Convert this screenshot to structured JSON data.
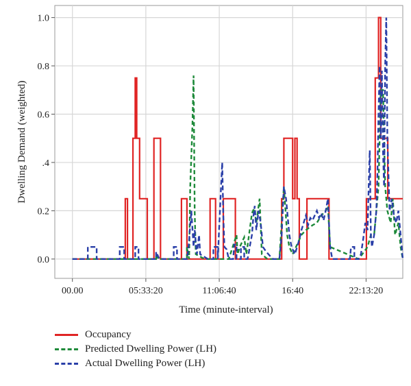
{
  "chart_data": {
    "type": "line",
    "xlabel": "Time (minute-interval)",
    "ylabel": "Dwelling Demand (weighted)",
    "x_ticks": [
      "00.00",
      "05:33:20",
      "11:06:40",
      "16:40",
      "22:13:20"
    ],
    "y_ticks": [
      "0.0",
      "0.2",
      ".4",
      "0.6",
      "0.8",
      "1.0"
    ],
    "y_tick_values": [
      0,
      0.2,
      0.4,
      0.6,
      0.8,
      1.0
    ],
    "x_tick_values": [
      0,
      333.33,
      666.67,
      1000,
      1333.33
    ],
    "x_unit": "minutes",
    "xlim": [
      -80,
      1500
    ],
    "ylim": [
      -0.08,
      1.05
    ],
    "grid": true,
    "legend_position": "below",
    "series": [
      {
        "name": "Occupancy",
        "color": "#e02424",
        "dash": "solid",
        "points": [
          [
            0,
            0
          ],
          [
            240,
            0
          ],
          [
            240,
            0.25
          ],
          [
            250,
            0.25
          ],
          [
            250,
            0
          ],
          [
            275,
            0
          ],
          [
            275,
            0.5
          ],
          [
            285,
            0.5
          ],
          [
            285,
            0.75
          ],
          [
            292,
            0.75
          ],
          [
            292,
            0.5
          ],
          [
            305,
            0.5
          ],
          [
            305,
            0.25
          ],
          [
            340,
            0.25
          ],
          [
            340,
            0
          ],
          [
            370,
            0
          ],
          [
            370,
            0.5
          ],
          [
            400,
            0.5
          ],
          [
            400,
            0
          ],
          [
            495,
            0
          ],
          [
            495,
            0.25
          ],
          [
            520,
            0.25
          ],
          [
            520,
            0
          ],
          [
            625,
            0
          ],
          [
            625,
            0.25
          ],
          [
            650,
            0.25
          ],
          [
            650,
            0
          ],
          [
            685,
            0
          ],
          [
            685,
            0.25
          ],
          [
            740,
            0.25
          ],
          [
            740,
            0
          ],
          [
            790,
            0
          ],
          [
            790,
            0
          ],
          [
            830,
            0
          ],
          [
            830,
            0
          ],
          [
            950,
            0
          ],
          [
            950,
            0.25
          ],
          [
            960,
            0.25
          ],
          [
            960,
            0.5
          ],
          [
            1000,
            0.5
          ],
          [
            1000,
            0.25
          ],
          [
            1010,
            0.25
          ],
          [
            1010,
            0.5
          ],
          [
            1020,
            0.5
          ],
          [
            1020,
            0.25
          ],
          [
            1030,
            0.25
          ],
          [
            1030,
            0
          ],
          [
            1065,
            0
          ],
          [
            1065,
            0.25
          ],
          [
            1165,
            0.25
          ],
          [
            1165,
            0
          ],
          [
            1335,
            0
          ],
          [
            1335,
            0.25
          ],
          [
            1375,
            0.25
          ],
          [
            1375,
            0.75
          ],
          [
            1390,
            0.75
          ],
          [
            1390,
            1.0
          ],
          [
            1400,
            1.0
          ],
          [
            1400,
            0.5
          ],
          [
            1432,
            0.5
          ],
          [
            1432,
            0.25
          ],
          [
            1500,
            0.25
          ]
        ]
      },
      {
        "name": "Predicted Dwelling Power (LH)",
        "color": "#1e8a3a",
        "dash": "6,4",
        "points": [
          [
            0,
            0
          ],
          [
            380,
            0
          ],
          [
            380,
            0.02
          ],
          [
            390,
            0
          ],
          [
            520,
            0
          ],
          [
            520,
            0.05
          ],
          [
            530,
            0
          ],
          [
            535,
            0.3
          ],
          [
            545,
            0.55
          ],
          [
            550,
            0.76
          ],
          [
            555,
            0.2
          ],
          [
            560,
            0.02
          ],
          [
            600,
            0
          ],
          [
            640,
            0
          ],
          [
            660,
            0
          ],
          [
            710,
            0
          ],
          [
            745,
            0.1
          ],
          [
            750,
            0.02
          ],
          [
            760,
            0.05
          ],
          [
            780,
            0.09
          ],
          [
            790,
            0.02
          ],
          [
            805,
            0.12
          ],
          [
            815,
            0.19
          ],
          [
            825,
            0.21
          ],
          [
            835,
            0.15
          ],
          [
            850,
            0.25
          ],
          [
            860,
            0.02
          ],
          [
            885,
            0
          ],
          [
            940,
            0
          ],
          [
            960,
            0.3
          ],
          [
            975,
            0.1
          ],
          [
            985,
            0.05
          ],
          [
            1000,
            0.02
          ],
          [
            1020,
            0.06
          ],
          [
            1040,
            0.1
          ],
          [
            1060,
            0.12
          ],
          [
            1075,
            0.13
          ],
          [
            1090,
            0.14
          ],
          [
            1110,
            0.15
          ],
          [
            1130,
            0.18
          ],
          [
            1150,
            0.2
          ],
          [
            1160,
            0.22
          ],
          [
            1170,
            0.05
          ],
          [
            1300,
            0
          ],
          [
            1340,
            0.05
          ],
          [
            1355,
            0.1
          ],
          [
            1370,
            0.1
          ],
          [
            1390,
            0.3
          ],
          [
            1400,
            0.7
          ],
          [
            1410,
            0.7
          ],
          [
            1420,
            0.3
          ],
          [
            1430,
            0.2
          ],
          [
            1445,
            0.15
          ],
          [
            1455,
            0.25
          ],
          [
            1465,
            0.1
          ],
          [
            1480,
            0.15
          ],
          [
            1490,
            0.05
          ],
          [
            1500,
            0
          ]
        ]
      },
      {
        "name": "Actual Dwelling Power (LH)",
        "color": "#2a3fa8",
        "dash": "7,4",
        "points": [
          [
            0,
            0
          ],
          [
            70,
            0
          ],
          [
            70,
            0.05
          ],
          [
            110,
            0.05
          ],
          [
            110,
            0
          ],
          [
            215,
            0
          ],
          [
            215,
            0.05
          ],
          [
            235,
            0.05
          ],
          [
            235,
            0
          ],
          [
            285,
            0
          ],
          [
            285,
            0.05
          ],
          [
            300,
            0.05
          ],
          [
            300,
            0
          ],
          [
            380,
            0
          ],
          [
            380,
            0.03
          ],
          [
            395,
            0
          ],
          [
            460,
            0
          ],
          [
            460,
            0.05
          ],
          [
            475,
            0.05
          ],
          [
            475,
            0
          ],
          [
            520,
            0
          ],
          [
            525,
            0.03
          ],
          [
            530,
            0.08
          ],
          [
            540,
            0.2
          ],
          [
            550,
            0.05
          ],
          [
            555,
            0.12
          ],
          [
            565,
            0.02
          ],
          [
            575,
            0.1
          ],
          [
            580,
            0.02
          ],
          [
            615,
            0
          ],
          [
            640,
            0
          ],
          [
            640,
            0.05
          ],
          [
            660,
            0.05
          ],
          [
            660,
            0
          ],
          [
            665,
            0.1
          ],
          [
            675,
            0.3
          ],
          [
            680,
            0.4
          ],
          [
            685,
            0.18
          ],
          [
            690,
            0.05
          ],
          [
            700,
            0.04
          ],
          [
            710,
            0
          ],
          [
            730,
            0
          ],
          [
            735,
            0.06
          ],
          [
            745,
            0.06
          ],
          [
            745,
            0
          ],
          [
            765,
            0
          ],
          [
            765,
            0.05
          ],
          [
            780,
            0.05
          ],
          [
            780,
            0
          ],
          [
            795,
            0
          ],
          [
            800,
            0.02
          ],
          [
            805,
            0.05
          ],
          [
            815,
            0.1
          ],
          [
            822,
            0.18
          ],
          [
            828,
            0.22
          ],
          [
            835,
            0.12
          ],
          [
            845,
            0.2
          ],
          [
            855,
            0.15
          ],
          [
            865,
            0.05
          ],
          [
            880,
            0.03
          ],
          [
            890,
            0.02
          ],
          [
            910,
            0
          ],
          [
            920,
            0
          ],
          [
            940,
            0
          ],
          [
            950,
            0.1
          ],
          [
            960,
            0.3
          ],
          [
            970,
            0.25
          ],
          [
            985,
            0.1
          ],
          [
            995,
            0.05
          ],
          [
            1010,
            0.02
          ],
          [
            1020,
            0.05
          ],
          [
            1030,
            0.08
          ],
          [
            1040,
            0.12
          ],
          [
            1050,
            0.15
          ],
          [
            1060,
            0.18
          ],
          [
            1070,
            0.14
          ],
          [
            1080,
            0.17
          ],
          [
            1090,
            0.16
          ],
          [
            1100,
            0.18
          ],
          [
            1110,
            0.2
          ],
          [
            1120,
            0.17
          ],
          [
            1130,
            0.19
          ],
          [
            1140,
            0.16
          ],
          [
            1150,
            0.2
          ],
          [
            1160,
            0.25
          ],
          [
            1170,
            0.05
          ],
          [
            1180,
            0
          ],
          [
            1260,
            0
          ],
          [
            1265,
            0.05
          ],
          [
            1280,
            0.05
          ],
          [
            1280,
            0
          ],
          [
            1300,
            0
          ],
          [
            1310,
            0.02
          ],
          [
            1320,
            0.08
          ],
          [
            1330,
            0.15
          ],
          [
            1340,
            0.12
          ],
          [
            1345,
            0.3
          ],
          [
            1350,
            0.45
          ],
          [
            1355,
            0.1
          ],
          [
            1360,
            0.05
          ],
          [
            1370,
            0.1
          ],
          [
            1380,
            0.2
          ],
          [
            1385,
            0.35
          ],
          [
            1390,
            0.6
          ],
          [
            1395,
            0.8
          ],
          [
            1400,
            0.5
          ],
          [
            1405,
            0.78
          ],
          [
            1410,
            0.45
          ],
          [
            1415,
            0.3
          ],
          [
            1420,
            0.8
          ],
          [
            1425,
            1.0
          ],
          [
            1430,
            0.5
          ],
          [
            1435,
            0.35
          ],
          [
            1440,
            0.2
          ],
          [
            1450,
            0.25
          ],
          [
            1460,
            0.18
          ],
          [
            1470,
            0.15
          ],
          [
            1480,
            0.2
          ],
          [
            1490,
            0.1
          ],
          [
            1500,
            0
          ]
        ]
      }
    ]
  }
}
